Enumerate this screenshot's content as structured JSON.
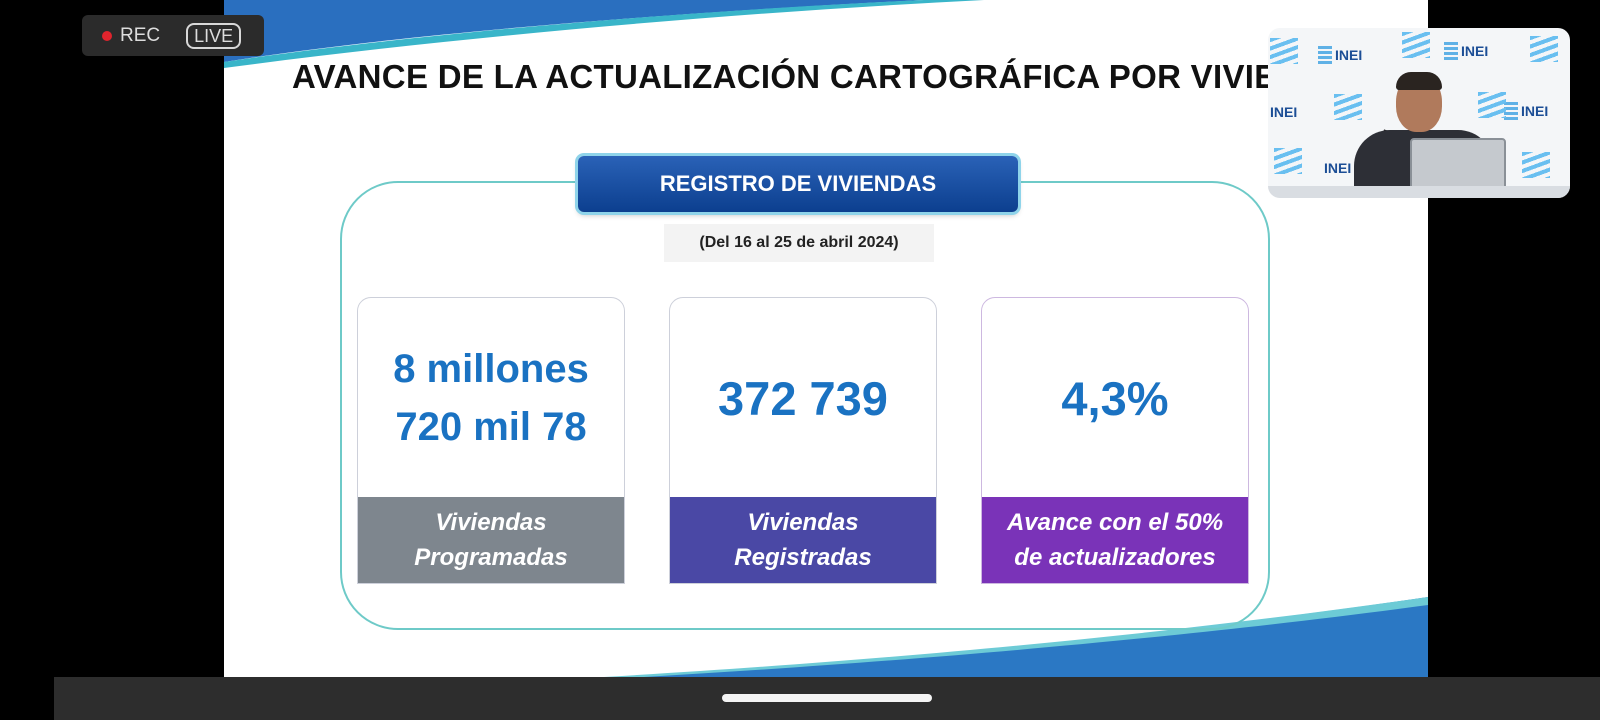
{
  "recording": {
    "rec_label": "REC",
    "live_label": "LIVE"
  },
  "slide": {
    "title": "AVANCE DE LA ACTUALIZACIÓN CARTOGRÁFICA POR VIVIE",
    "section_header": "REGISTRO DE VIVIENDAS",
    "date_range": "(Del 16 al 25 de abril 2024)",
    "cards": [
      {
        "value_lines": [
          "8 millones",
          "720 mil 78"
        ],
        "label_lines": [
          "Viviendas",
          "Programadas"
        ],
        "color": "#7e868e"
      },
      {
        "value_lines": [
          "372 739"
        ],
        "label_lines": [
          "Viviendas",
          "Registradas"
        ],
        "color": "#4a48a5"
      },
      {
        "value_lines": [
          "4,3%"
        ],
        "label_lines": [
          "Avance con el 50%",
          "de actualizadores"
        ],
        "color": "#7a33b8"
      }
    ]
  },
  "video_feed": {
    "logo_text": "INEI"
  },
  "colors": {
    "accent_blue": "#1a72c2",
    "frame_teal": "#6ecac8",
    "header_blue": "#0c3f8f"
  }
}
